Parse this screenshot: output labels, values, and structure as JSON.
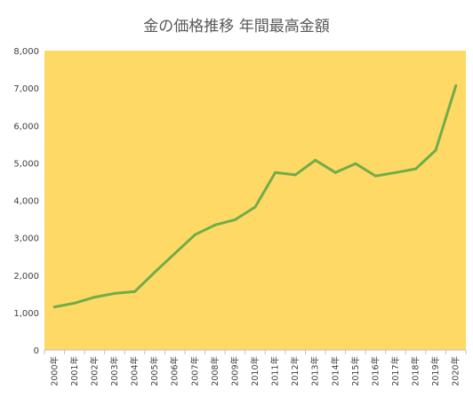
{
  "chart_data": {
    "type": "line",
    "title": "金の価格推移 年間最高金額",
    "xlabel": "",
    "ylabel": "",
    "categories": [
      "2000年",
      "2001年",
      "2002年",
      "2003年",
      "2004年",
      "2005年",
      "2006年",
      "2007年",
      "2008年",
      "2009年",
      "2010年",
      "2011年",
      "2012年",
      "2013年",
      "2014年",
      "2015年",
      "2016年",
      "2017年",
      "2018年",
      "2019年",
      "2020年"
    ],
    "series": [
      {
        "values": [
          1150,
          1250,
          1410,
          1510,
          1560,
          2080,
          2580,
          3080,
          3340,
          3480,
          3820,
          4740,
          4680,
          5070,
          4740,
          4980,
          4650,
          4740,
          4840,
          5340,
          7060
        ]
      }
    ],
    "ylim": [
      0,
      8000
    ],
    "yticks": [
      "0",
      "1,000",
      "2,000",
      "3,000",
      "4,000",
      "5,000",
      "6,000",
      "7,000",
      "8,000"
    ],
    "ytick_values": [
      0,
      1000,
      2000,
      3000,
      4000,
      5000,
      6000,
      7000,
      8000
    ],
    "grid": false,
    "legend": "none",
    "colors": {
      "plot_background": "#FFD966",
      "line": "#70AD47",
      "axis": "#BFBFBF",
      "text": "#404040",
      "title": "#595959"
    }
  }
}
